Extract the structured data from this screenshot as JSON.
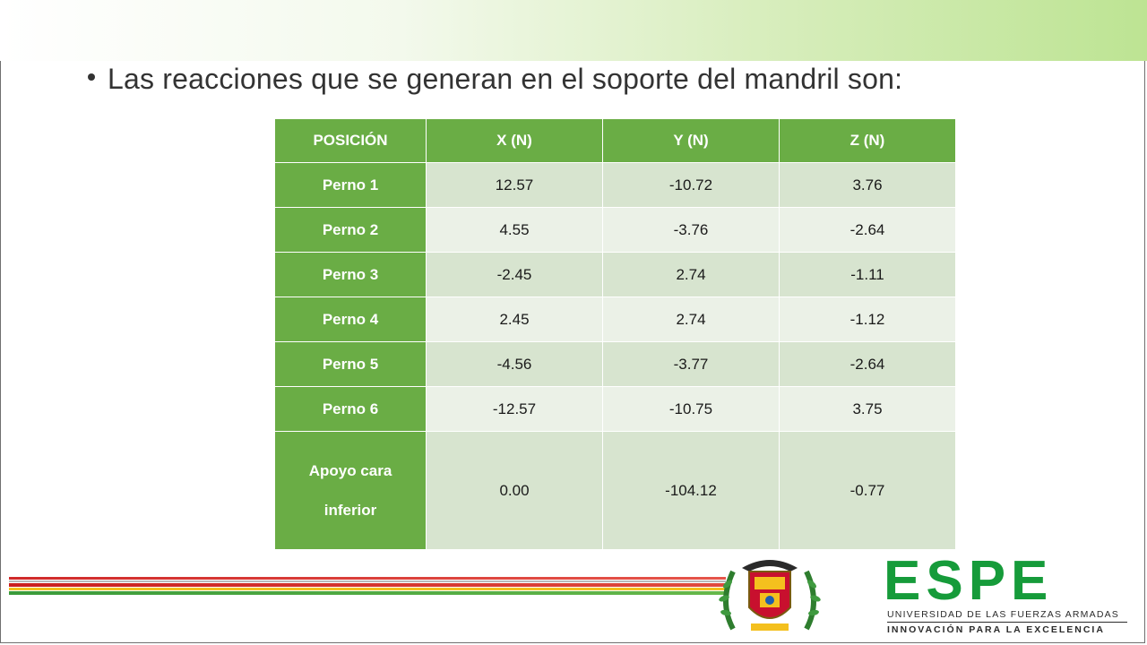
{
  "bullet": {
    "text": "Las reacciones que se generan en el soporte del mandril son:"
  },
  "table": {
    "headers": [
      "POSICIÓN",
      "X (N)",
      "Y (N)",
      "Z (N)"
    ],
    "rows": [
      {
        "label": "Perno 1",
        "x": "12.57",
        "y": "-10.72",
        "z": "3.76"
      },
      {
        "label": "Perno 2",
        "x": "4.55",
        "y": "-3.76",
        "z": "-2.64"
      },
      {
        "label": "Perno 3",
        "x": "-2.45",
        "y": "2.74",
        "z": "-1.11"
      },
      {
        "label": "Perno 4",
        "x": "2.45",
        "y": "2.74",
        "z": "-1.12"
      },
      {
        "label": "Perno 5",
        "x": "-4.56",
        "y": "-3.77",
        "z": "-2.64"
      },
      {
        "label": "Perno 6",
        "x": "-12.57",
        "y": "-10.75",
        "z": "3.75"
      },
      {
        "label": "Apoyo cara inferior",
        "label_line1": "Apoyo cara",
        "label_line2": "inferior",
        "x": "0.00",
        "y": "-104.12",
        "z": "-0.77"
      }
    ]
  },
  "footer": {
    "logo_word": "ESPE",
    "logo_subtitle": "UNIVERSIDAD DE LAS FUERZAS ARMADAS",
    "logo_tagline": "INNOVACIÓN PARA LA EXCELENCIA"
  },
  "colors": {
    "header_green": "#6aad45",
    "row_odd": "#d7e4cf",
    "row_even": "#ebf1e7",
    "logo_green": "#169b3a",
    "stripe_red": "#d02a2a",
    "stripe_yellow": "#f4c01e",
    "stripe_green": "#3a9b3a"
  },
  "icons": [
    "crest-emblem-icon",
    "espe-logo"
  ]
}
